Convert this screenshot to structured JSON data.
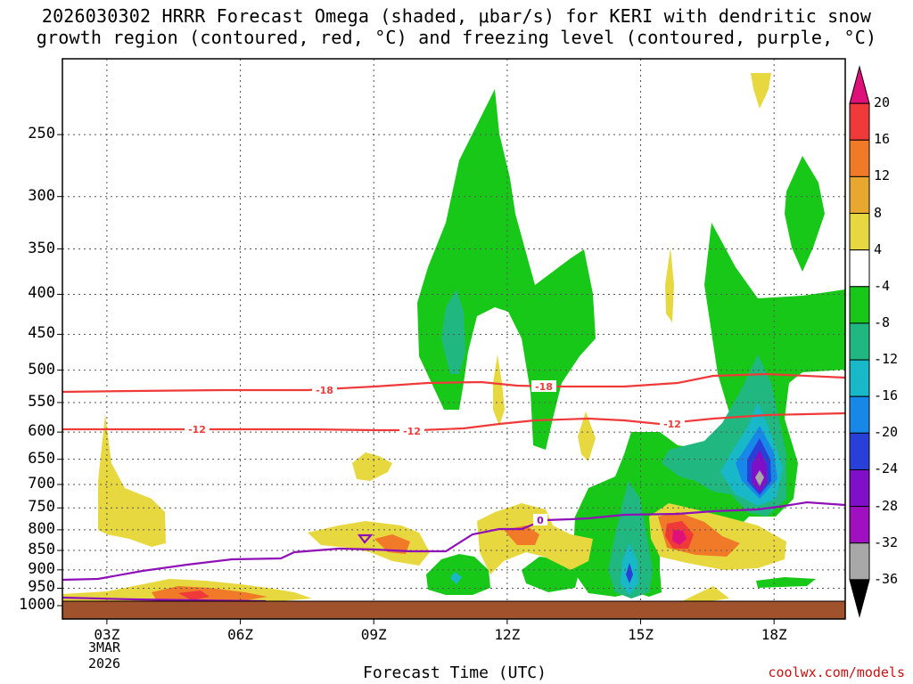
{
  "title_line1": "2026030302 HRRR Forecast Omega (shaded, μbar/s) for KERI with dendritic snow",
  "title_line2": "growth region (contoured, red, °C) and freezing level (contoured, purple, °C)",
  "credit": "coolwx.com/models",
  "chart_data": {
    "type": "heatmap",
    "title": "2026030302 HRRR Forecast Omega (shaded, μbar/s) for KERI with dendritic snow growth region (contoured, red, °C) and freezing level (contoured, purple, °C)",
    "xlabel": "Forecast Time (UTC)",
    "ylabel": "",
    "x_ticks": [
      "03Z",
      "06Z",
      "09Z",
      "12Z",
      "15Z",
      "18Z"
    ],
    "x_sublabels": [
      "3MAR",
      "2026"
    ],
    "x_range_hours": [
      2.0,
      19.6
    ],
    "y_ticks": [
      250,
      300,
      350,
      400,
      450,
      500,
      550,
      600,
      650,
      700,
      750,
      800,
      850,
      900,
      950,
      1000
    ],
    "y_range_hpa": [
      1040,
      200
    ],
    "colorbar": {
      "labels": [
        "20",
        "16",
        "12",
        "8",
        "4",
        "-4",
        "-8",
        "-12",
        "-16",
        "-20",
        "-24",
        "-28",
        "-32",
        "-36"
      ],
      "colors": [
        "#e0107a",
        "#f03a3a",
        "#f07a28",
        "#e8a830",
        "#e8d840",
        "#ffffff",
        "#18c818",
        "#20b880",
        "#18b8c8",
        "#1888e8",
        "#2840d8",
        "#8010c8",
        "#a010c0",
        "#a8a8a8",
        "#000000"
      ]
    },
    "contours": {
      "temperature_labels": [
        "-18",
        "-18",
        "-12",
        "-12",
        "-12"
      ],
      "freezing_label": "0"
    }
  }
}
